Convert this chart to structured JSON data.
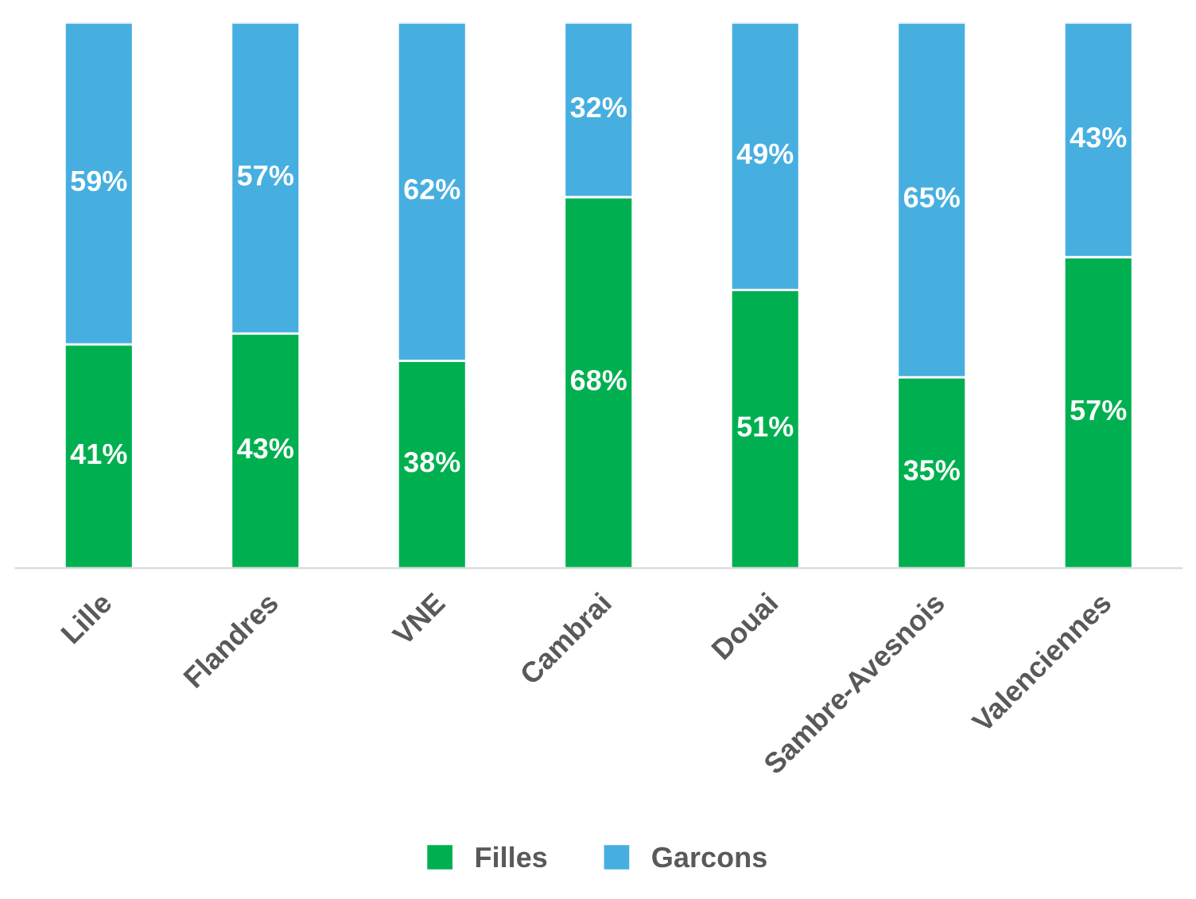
{
  "chart_data": {
    "type": "bar",
    "stacked": true,
    "legend": "bottom",
    "categories": [
      "Lille",
      "Flandres",
      "VNE",
      "Cambrai",
      "Douai",
      "Sambre-Avesnois",
      "Valenciennes"
    ],
    "series": [
      {
        "name": "Filles",
        "color": "#00b050",
        "values": [
          41,
          43,
          38,
          68,
          51,
          35,
          57
        ],
        "value_labels": [
          "41%",
          "43%",
          "38%",
          "68%",
          "51%",
          "35%",
          "57%"
        ]
      },
      {
        "name": "Garcons",
        "color": "#47afe0",
        "values": [
          59,
          57,
          62,
          32,
          49,
          65,
          43
        ],
        "value_labels": [
          "59%",
          "57%",
          "62%",
          "32%",
          "49%",
          "65%",
          "43%"
        ]
      }
    ]
  }
}
